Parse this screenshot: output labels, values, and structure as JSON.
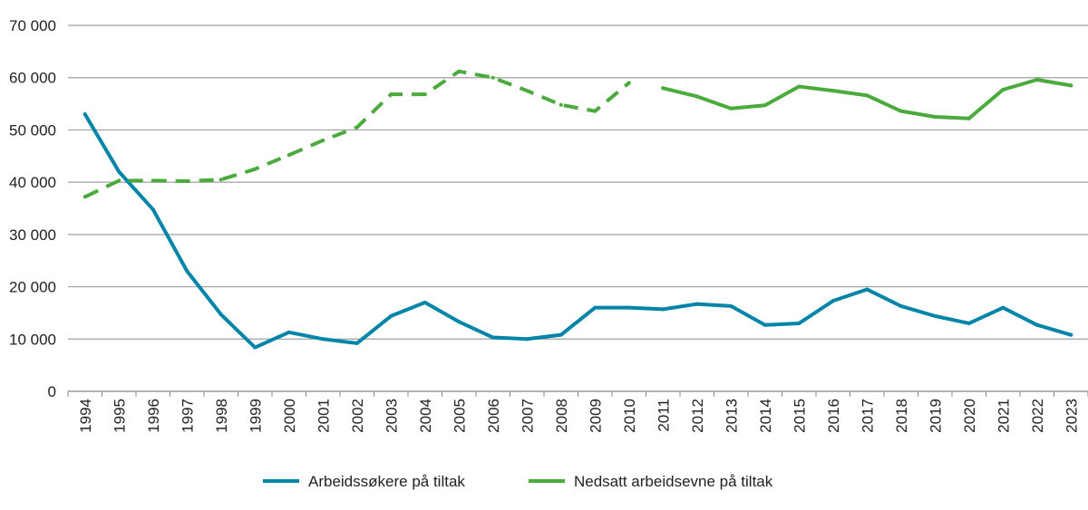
{
  "chart_data": {
    "type": "line",
    "title": "",
    "xlabel": "",
    "ylabel": "",
    "ylim": [
      0,
      70000
    ],
    "yticks": [
      0,
      10000,
      20000,
      30000,
      40000,
      50000,
      60000,
      70000
    ],
    "ytick_labels": [
      "0",
      "10 000",
      "20 000",
      "30 000",
      "40 000",
      "50 000",
      "60 000",
      "70 000"
    ],
    "grid": "horizontal",
    "legend_position": "bottom",
    "categories": [
      "1994",
      "1995",
      "1996",
      "1997",
      "1998",
      "1999",
      "2000",
      "2001",
      "2002",
      "2003",
      "2004",
      "2005",
      "2006",
      "2007",
      "2008",
      "2009",
      "2010",
      "2011",
      "2012",
      "2013",
      "2014",
      "2015",
      "2016",
      "2017",
      "2018",
      "2019",
      "2020",
      "2021",
      "2022",
      "2023"
    ],
    "series": [
      {
        "name": "Arbeidssøkere på tiltak",
        "color": "#0085a8",
        "style": "solid",
        "values": [
          53000,
          42000,
          34800,
          23000,
          14700,
          8400,
          11300,
          10000,
          9200,
          14400,
          17000,
          13300,
          10300,
          10000,
          10800,
          16000,
          16000,
          15700,
          16700,
          16300,
          12700,
          13000,
          17300,
          19500,
          16300,
          14400,
          13000,
          16000,
          12700,
          10800
        ]
      },
      {
        "name": "Nedsatt arbeidsevne på tiltak",
        "color": "#4aaa3c",
        "style": "dashed through 2010, solid from 2011",
        "dashed_through": "2010",
        "values": [
          37200,
          40300,
          40300,
          40200,
          40500,
          42500,
          45200,
          48000,
          50500,
          56800,
          56800,
          61200,
          60000,
          57500,
          54800,
          53600,
          59000,
          58000,
          56400,
          54100,
          54700,
          58300,
          57500,
          56600,
          53600,
          52500,
          52200,
          57700,
          59600,
          58500
        ]
      }
    ]
  }
}
